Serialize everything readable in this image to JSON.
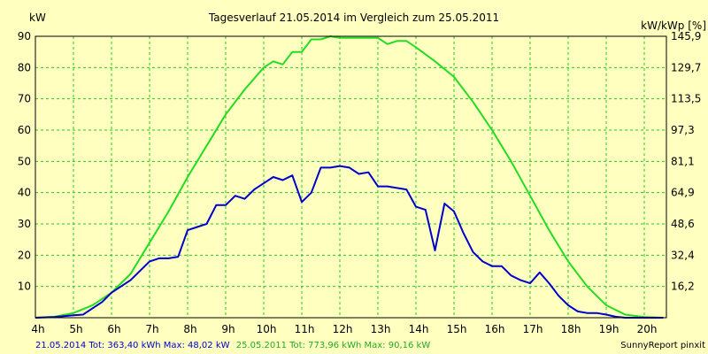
{
  "chart_data": {
    "type": "line",
    "title": "Tagesverlauf 21.05.2014 im Vergleich zum 25.05.2011",
    "ylabel_left": "kW",
    "ylabel_right": "kW/kWp [%]",
    "xlim": [
      4,
      20.5
    ],
    "ylim": [
      0,
      90
    ],
    "grid": true,
    "x_ticks": [
      "4h",
      "5h",
      "6h",
      "7h",
      "8h",
      "9h",
      "10h",
      "11h",
      "12h",
      "13h",
      "14h",
      "15h",
      "16h",
      "17h",
      "18h",
      "19h",
      "20h"
    ],
    "y_ticks_left": [
      "90",
      "80",
      "70",
      "60",
      "50",
      "40",
      "30",
      "20",
      "10"
    ],
    "y_ticks_right": [
      "145,9",
      "129,7",
      "113,5",
      "97,3",
      "81,1",
      "64,9",
      "48,6",
      "32,4",
      "16,2"
    ],
    "series": [
      {
        "name": "25.05.2011",
        "color": "#22dd22",
        "x": [
          4,
          4.5,
          5,
          5.5,
          6,
          6.5,
          7,
          7.5,
          8,
          8.5,
          9,
          9.5,
          10,
          10.25,
          10.5,
          10.75,
          11,
          11.25,
          11.5,
          11.75,
          12,
          12.25,
          12.5,
          13,
          13.25,
          13.5,
          13.75,
          14,
          14.5,
          15,
          15.5,
          16,
          16.5,
          17,
          17.5,
          18,
          18.5,
          19,
          19.5,
          20,
          20.5
        ],
        "values": [
          0,
          0.3,
          1.5,
          4,
          8,
          14,
          24,
          34,
          45,
          55,
          65,
          73,
          80,
          82,
          81,
          85,
          85,
          89,
          89,
          90,
          89.5,
          89.5,
          89.5,
          89.5,
          87.5,
          88.5,
          88.5,
          86.5,
          82,
          77,
          69,
          60,
          50,
          39,
          28,
          18,
          10,
          4,
          1,
          0.2,
          0
        ]
      },
      {
        "name": "21.05.2014",
        "color": "#0000cc",
        "x": [
          4,
          4.5,
          5,
          5.25,
          5.5,
          5.75,
          6,
          6.5,
          7,
          7.25,
          7.5,
          7.75,
          8,
          8.25,
          8.5,
          8.75,
          9,
          9.25,
          9.5,
          9.75,
          10,
          10.25,
          10.5,
          10.75,
          11,
          11.25,
          11.5,
          11.75,
          12,
          12.25,
          12.5,
          12.75,
          13,
          13.25,
          13.5,
          13.75,
          14,
          14.25,
          14.5,
          14.75,
          15,
          15.25,
          15.5,
          15.75,
          16,
          16.25,
          16.5,
          16.75,
          17,
          17.25,
          17.5,
          17.75,
          18,
          18.25,
          18.5,
          18.75,
          19,
          19.25,
          19.5,
          20,
          20.5
        ],
        "values": [
          0,
          0.2,
          0.8,
          1,
          3,
          5,
          8,
          12,
          18,
          19,
          19,
          19.5,
          28,
          29,
          30,
          36,
          36,
          39,
          38,
          41,
          43,
          45,
          44,
          45.5,
          37,
          40,
          48,
          48,
          48.5,
          48,
          46,
          46.5,
          42,
          42,
          41.5,
          41,
          35.5,
          34.5,
          21.5,
          36.5,
          34,
          27,
          21,
          18,
          16.5,
          16.5,
          13.5,
          12,
          11,
          14.5,
          11,
          7,
          4,
          2,
          1.5,
          1.5,
          1,
          0.3,
          0,
          0,
          0
        ]
      }
    ]
  },
  "footer": {
    "series1_info": "21.05.2014 Tot: 363,40 kWh Max: 48,02 kW",
    "series2_info": "25.05.2011 Tot: 773,96 kWh Max: 90,16 kW",
    "series1_color": "#0000cc",
    "series2_color": "#22aa22",
    "brand": "SunnyReport pinxit"
  },
  "colors": {
    "background": "#ffffc0",
    "grid": "#22cc22",
    "frame": "#000000"
  }
}
